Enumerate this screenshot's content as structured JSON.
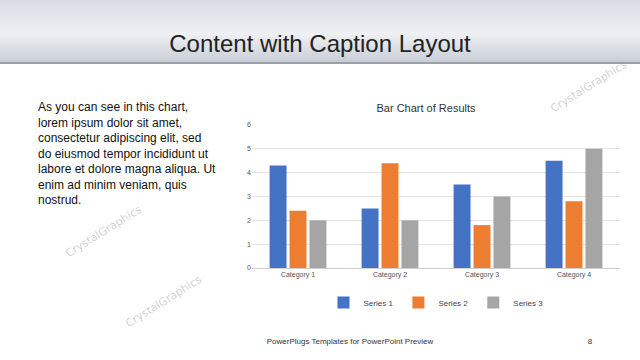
{
  "slide_title": "Content with Caption Layout",
  "caption": "As you can see in this chart, lorem ipsum dolor sit amet, consectetur adipiscing elit, sed do eiusmod tempor incididunt ut labore et dolore magna aliqua. Ut enim ad minim veniam, quis nostrud.",
  "footer": "PowerPlugs Templates for PowerPoint Preview",
  "page_number": 8,
  "watermark": "CrystalGraphics",
  "chart_data": {
    "type": "bar",
    "title": "Bar Chart of Results",
    "categories": [
      "Category 1",
      "Category 2",
      "Category 3",
      "Category 4"
    ],
    "series": [
      {
        "name": "Series 1",
        "color": "#4472c4",
        "values": [
          4.3,
          2.5,
          3.5,
          4.5
        ]
      },
      {
        "name": "Series 2",
        "color": "#ed7d31",
        "values": [
          2.4,
          4.4,
          1.8,
          2.8
        ]
      },
      {
        "name": "Series 3",
        "color": "#a5a5a5",
        "values": [
          2,
          2,
          3,
          5
        ]
      }
    ],
    "ylim": [
      0,
      6
    ],
    "yticks": [
      0,
      1,
      2,
      3,
      4,
      5,
      6
    ],
    "grid": true,
    "legend": "bottom"
  }
}
